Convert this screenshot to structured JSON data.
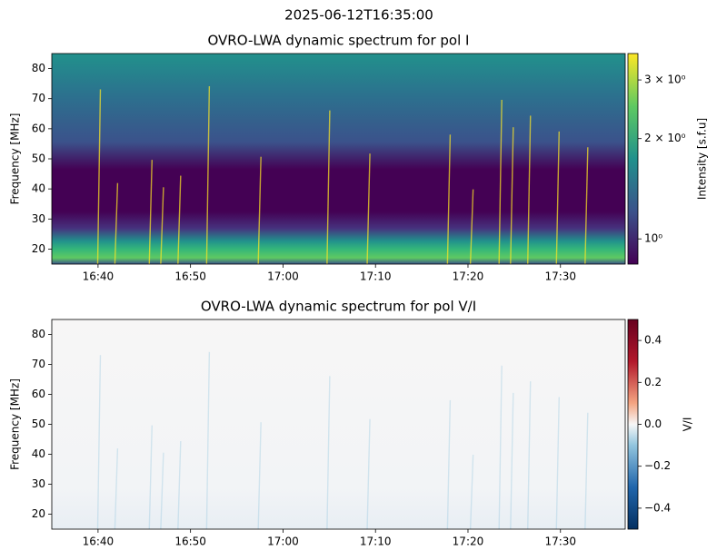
{
  "title": "2025-06-12T16:35:00",
  "chart_data": [
    {
      "type": "heatmap",
      "title": "OVRO-LWA dynamic spectrum for pol I",
      "ylabel": "Frequency [MHz]",
      "xlim": [
        "16:35",
        "17:37"
      ],
      "xticks": [
        "16:40",
        "16:50",
        "17:00",
        "17:10",
        "17:20",
        "17:30"
      ],
      "ylim": [
        15,
        85
      ],
      "yticks": [
        20,
        30,
        40,
        50,
        60,
        70,
        80
      ],
      "colormap": "viridis",
      "colorbar_label": "Intensity [s.f.u]",
      "colorbar_log": true,
      "clim": [
        0.84,
        3.6
      ],
      "colorbar_ticks": [
        {
          "value": 3,
          "label": "3 × 10⁰"
        },
        {
          "value": 2,
          "label": "2 × 10⁰"
        },
        {
          "value": 1,
          "label": "10⁰"
        }
      ]
    },
    {
      "type": "heatmap",
      "title": "OVRO-LWA dynamic spectrum for pol V/I",
      "ylabel": "Frequency [MHz]",
      "xlim": [
        "16:35",
        "17:37"
      ],
      "xticks": [
        "16:40",
        "16:50",
        "17:00",
        "17:10",
        "17:20",
        "17:30"
      ],
      "ylim": [
        15,
        85
      ],
      "yticks": [
        20,
        30,
        40,
        50,
        60,
        70,
        80
      ],
      "colormap": "RdBu_r",
      "colorbar_label": "V/I",
      "colorbar_log": false,
      "clim": [
        -0.5,
        0.5
      ],
      "colorbar_ticks": [
        0.4,
        0.2,
        {
          "value": 0,
          "label": "0.0"
        },
        {
          "value": -0.2,
          "label": "−0.2"
        },
        {
          "value": -0.4,
          "label": "−0.4"
        }
      ]
    }
  ]
}
